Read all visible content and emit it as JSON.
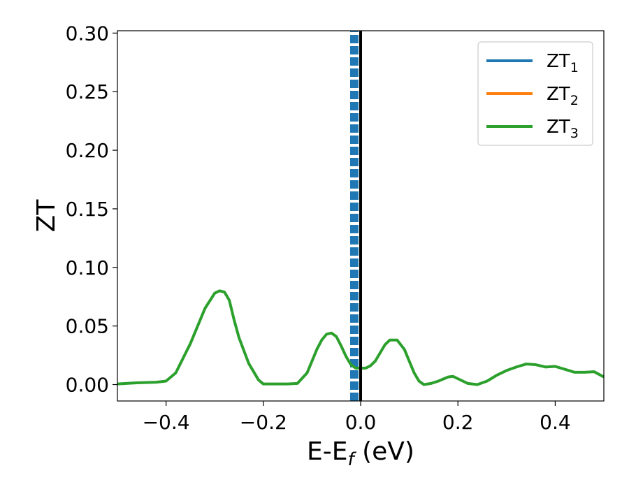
{
  "chart_data": {
    "type": "line",
    "xlabel": "E-E",
    "xlabel_sub": "f",
    "xlabel_unit": " (eV)",
    "ylabel": "ZT",
    "xlim": [
      -0.5,
      0.5
    ],
    "ylim": [
      -0.014,
      0.302
    ],
    "xticks": [
      -0.4,
      -0.2,
      0.0,
      0.2,
      0.4
    ],
    "xtick_labels": [
      "−0.4",
      "−0.2",
      "0.0",
      "0.2",
      "0.4"
    ],
    "yticks": [
      0.0,
      0.05,
      0.1,
      0.15,
      0.2,
      0.25,
      0.3
    ],
    "ytick_labels": [
      "0.00",
      "0.05",
      "0.10",
      "0.15",
      "0.20",
      "0.25",
      "0.30"
    ],
    "grid": false,
    "legend_position": "top-right",
    "series": [
      {
        "name": "ZT",
        "name_sub": "1",
        "color": "#1f77b4",
        "style": "dashed",
        "x": [
          -0.013,
          -0.013
        ],
        "y": [
          -0.014,
          0.302
        ]
      },
      {
        "name": "ZT",
        "name_sub": "2",
        "color": "#ff7f0e",
        "style": "solid",
        "x": [],
        "y": []
      },
      {
        "name": "ZT",
        "name_sub": "3",
        "color": "#2ca02c",
        "style": "solid",
        "x": [
          -0.5,
          -0.46,
          -0.42,
          -0.4,
          -0.38,
          -0.35,
          -0.32,
          -0.3,
          -0.29,
          -0.28,
          -0.27,
          -0.26,
          -0.25,
          -0.23,
          -0.21,
          -0.2,
          -0.15,
          -0.13,
          -0.11,
          -0.09,
          -0.08,
          -0.07,
          -0.06,
          -0.05,
          -0.04,
          -0.03,
          -0.02,
          -0.01,
          0.0,
          0.01,
          0.02,
          0.03,
          0.04,
          0.05,
          0.06,
          0.075,
          0.09,
          0.1,
          0.11,
          0.12,
          0.13,
          0.145,
          0.16,
          0.18,
          0.19,
          0.2,
          0.22,
          0.24,
          0.26,
          0.28,
          0.3,
          0.32,
          0.34,
          0.36,
          0.38,
          0.4,
          0.42,
          0.44,
          0.46,
          0.48,
          0.5
        ],
        "y": [
          0.0005,
          0.0015,
          0.002,
          0.003,
          0.01,
          0.035,
          0.065,
          0.078,
          0.08,
          0.079,
          0.072,
          0.055,
          0.04,
          0.018,
          0.004,
          0.0005,
          0.0005,
          0.001,
          0.01,
          0.03,
          0.038,
          0.043,
          0.044,
          0.041,
          0.033,
          0.024,
          0.017,
          0.014,
          0.014,
          0.014,
          0.016,
          0.02,
          0.027,
          0.034,
          0.038,
          0.038,
          0.03,
          0.02,
          0.01,
          0.003,
          0.0,
          0.001,
          0.003,
          0.0065,
          0.007,
          0.005,
          0.001,
          0.0,
          0.003,
          0.008,
          0.012,
          0.015,
          0.0175,
          0.017,
          0.015,
          0.0155,
          0.013,
          0.0105,
          0.0105,
          0.011,
          0.0065
        ]
      }
    ],
    "vline": {
      "x": 0.0,
      "color": "#000000"
    }
  }
}
